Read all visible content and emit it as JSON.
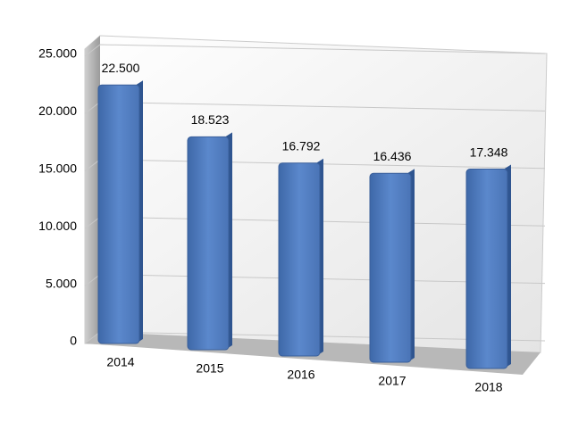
{
  "chart_data": {
    "type": "bar",
    "categories": [
      "2014",
      "2015",
      "2016",
      "2017",
      "2018"
    ],
    "values": [
      22500,
      18523,
      16792,
      16436,
      17348
    ],
    "value_labels": [
      "22.500",
      "18.523",
      "16.792",
      "16.436",
      "17.348"
    ],
    "color": "#4f7cc0",
    "ylim": [
      0,
      25000
    ],
    "yticks": [
      0,
      {
        "value": 5000,
        "label": "5.000"
      },
      {
        "value": 10000,
        "label": "10.000"
      },
      {
        "value": 15000,
        "label": "15.000"
      },
      {
        "value": 20000,
        "label": "20.000"
      },
      {
        "value": 25000,
        "label": "25.000"
      }
    ],
    "grid": true
  }
}
